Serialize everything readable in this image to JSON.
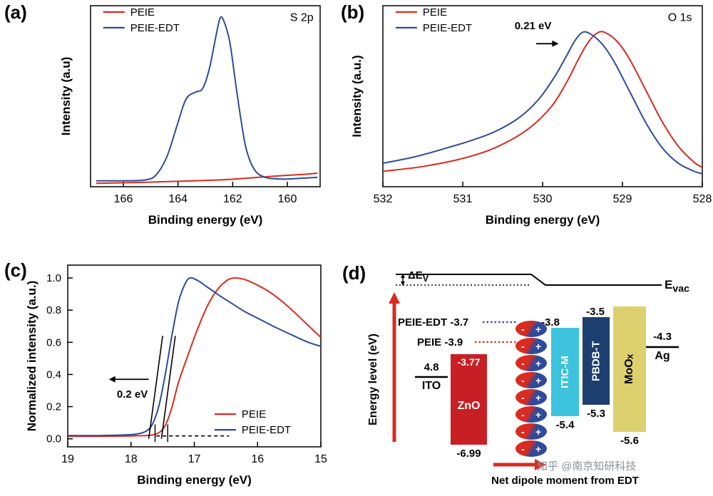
{
  "watermark": "知乎 @南京知研科技",
  "colors": {
    "red": "#d92b1f",
    "blue": "#2e4a9c",
    "zno_bar": "#c81f25",
    "itic_bar": "#3ec3de",
    "pbdb_bar": "#1d3f70",
    "moox_bar": "#ddd06e",
    "watermark": "#8a9097"
  },
  "chart_data": [
    {
      "id": "a",
      "type": "line",
      "panel_label": "(a)",
      "title": "S 2p XPS spectra",
      "xlabel": "Binding energy (eV)",
      "ylabel": "Intensity (a.u)",
      "xlim": [
        167.2,
        158.8
      ],
      "ylim": [
        0,
        1.07
      ],
      "xticks": [
        166,
        164,
        162,
        160
      ],
      "yticks": [],
      "legend": {
        "fx": 0.055,
        "fy": 0.035
      },
      "series": [
        {
          "name": "PEIE",
          "color": "red",
          "points": [
            [
              167,
              0.02
            ],
            [
              165.5,
              0.025
            ],
            [
              164,
              0.032
            ],
            [
              162.5,
              0.04
            ],
            [
              161.5,
              0.05
            ],
            [
              160.5,
              0.062
            ],
            [
              159.5,
              0.072
            ],
            [
              158.9,
              0.08
            ]
          ]
        },
        {
          "name": "PEIE-EDT",
          "color": "blue",
          "points": [
            [
              167,
              0.035
            ],
            [
              166,
              0.035
            ],
            [
              165.2,
              0.04
            ],
            [
              164.8,
              0.07
            ],
            [
              164.4,
              0.18
            ],
            [
              164.0,
              0.38
            ],
            [
              163.7,
              0.52
            ],
            [
              163.35,
              0.56
            ],
            [
              163.1,
              0.58
            ],
            [
              162.85,
              0.7
            ],
            [
              162.6,
              0.9
            ],
            [
              162.45,
              1.0
            ],
            [
              162.3,
              0.97
            ],
            [
              162.1,
              0.85
            ],
            [
              161.9,
              0.62
            ],
            [
              161.7,
              0.4
            ],
            [
              161.5,
              0.22
            ],
            [
              161.2,
              0.1
            ],
            [
              160.8,
              0.055
            ],
            [
              160.2,
              0.045
            ],
            [
              159.5,
              0.05
            ],
            [
              158.9,
              0.055
            ]
          ]
        }
      ],
      "annotations": [
        {
          "type": "text",
          "text": "S 2p",
          "frac": [
            0.92,
            0.085
          ],
          "size": 16,
          "weight": 400
        }
      ]
    },
    {
      "id": "b",
      "type": "line",
      "panel_label": "(b)",
      "title": "O 1s XPS spectra, 0.21 eV shift",
      "xlabel": "Binding energy (eV)",
      "ylabel": "Intensity (a.u.)",
      "xlim": [
        532,
        528
      ],
      "ylim": [
        0,
        1.12
      ],
      "xticks": [
        532,
        531,
        530,
        529,
        528
      ],
      "yticks": [],
      "legend": {
        "fx": 0.04,
        "fy": 0.035
      },
      "series": [
        {
          "name": "PEIE",
          "color": "red",
          "points": [
            [
              532,
              0.095
            ],
            [
              531.5,
              0.125
            ],
            [
              531.0,
              0.175
            ],
            [
              530.6,
              0.24
            ],
            [
              530.2,
              0.35
            ],
            [
              529.9,
              0.49
            ],
            [
              529.7,
              0.645
            ],
            [
              529.55,
              0.79
            ],
            [
              529.42,
              0.9
            ],
            [
              529.3,
              0.955
            ],
            [
              529.2,
              0.95
            ],
            [
              529.05,
              0.89
            ],
            [
              528.9,
              0.78
            ],
            [
              528.7,
              0.59
            ],
            [
              528.5,
              0.4
            ],
            [
              528.3,
              0.25
            ],
            [
              528.1,
              0.15
            ],
            [
              528.0,
              0.12
            ]
          ]
        },
        {
          "name": "PEIE-EDT",
          "color": "blue",
          "points": [
            [
              532,
              0.145
            ],
            [
              531.6,
              0.185
            ],
            [
              531.2,
              0.24
            ],
            [
              530.9,
              0.285
            ],
            [
              530.6,
              0.34
            ],
            [
              530.3,
              0.425
            ],
            [
              530.05,
              0.54
            ],
            [
              529.85,
              0.68
            ],
            [
              529.7,
              0.81
            ],
            [
              529.6,
              0.9
            ],
            [
              529.5,
              0.955
            ],
            [
              529.4,
              0.945
            ],
            [
              529.25,
              0.88
            ],
            [
              529.1,
              0.77
            ],
            [
              528.9,
              0.58
            ],
            [
              528.7,
              0.39
            ],
            [
              528.5,
              0.24
            ],
            [
              528.3,
              0.145
            ],
            [
              528.1,
              0.095
            ],
            [
              528.0,
              0.08
            ]
          ]
        }
      ],
      "annotations": [
        {
          "type": "text",
          "text": "O 1s",
          "frac": [
            0.93,
            0.085
          ],
          "size": 16,
          "weight": 400
        },
        {
          "type": "text",
          "text": "0.21 eV",
          "x": 530.12,
          "y": 0.975,
          "size": 15,
          "weight": 700
        },
        {
          "type": "arrow",
          "from": [
            530.08,
            0.885
          ],
          "to": [
            529.8,
            0.885
          ]
        }
      ]
    },
    {
      "id": "c",
      "type": "line",
      "panel_label": "(c)",
      "title": "UPS secondary electron cutoff, 0.2 eV shift",
      "xlabel": "Binding energy (eV)",
      "ylabel": "Normalized intensity (a.u.)",
      "xlim": [
        19,
        15
      ],
      "ylim": [
        -0.05,
        1.08
      ],
      "xticks": [
        19,
        18,
        17,
        16,
        15
      ],
      "yticks": [
        0,
        0.2,
        0.4,
        0.6,
        0.8,
        1.0
      ],
      "ytick_labels": [
        "0.0",
        "0.2",
        "0.4",
        "0.6",
        "0.8",
        "1.0"
      ],
      "legend": {
        "fx": 0.58,
        "fy": 0.82
      },
      "series": [
        {
          "name": "PEIE",
          "color": "red",
          "points": [
            [
              19,
              0.015
            ],
            [
              18.5,
              0.015
            ],
            [
              18.0,
              0.018
            ],
            [
              17.7,
              0.022
            ],
            [
              17.55,
              0.04
            ],
            [
              17.45,
              0.09
            ],
            [
              17.35,
              0.2
            ],
            [
              17.25,
              0.35
            ],
            [
              17.1,
              0.52
            ],
            [
              16.95,
              0.68
            ],
            [
              16.8,
              0.82
            ],
            [
              16.65,
              0.92
            ],
            [
              16.5,
              0.98
            ],
            [
              16.38,
              1.0
            ],
            [
              16.2,
              0.99
            ],
            [
              16.0,
              0.955
            ],
            [
              15.8,
              0.91
            ],
            [
              15.6,
              0.85
            ],
            [
              15.4,
              0.78
            ],
            [
              15.2,
              0.705
            ],
            [
              15.0,
              0.63
            ]
          ]
        },
        {
          "name": "PEIE-EDT",
          "color": "blue",
          "points": [
            [
              19,
              0.02
            ],
            [
              18.5,
              0.02
            ],
            [
              18.1,
              0.024
            ],
            [
              17.9,
              0.03
            ],
            [
              17.75,
              0.05
            ],
            [
              17.65,
              0.1
            ],
            [
              17.55,
              0.22
            ],
            [
              17.45,
              0.42
            ],
            [
              17.35,
              0.65
            ],
            [
              17.25,
              0.85
            ],
            [
              17.15,
              0.96
            ],
            [
              17.07,
              1.0
            ],
            [
              16.95,
              0.985
            ],
            [
              16.8,
              0.945
            ],
            [
              16.6,
              0.89
            ],
            [
              16.4,
              0.84
            ],
            [
              16.2,
              0.79
            ],
            [
              16.0,
              0.75
            ],
            [
              15.7,
              0.69
            ],
            [
              15.4,
              0.635
            ],
            [
              15.2,
              0.6
            ],
            [
              15.0,
              0.575
            ]
          ]
        }
      ],
      "annotations": [
        {
          "type": "line",
          "points": [
            [
              17.72,
              0.0
            ],
            [
              17.5,
              0.64
            ]
          ],
          "color": "black",
          "width": 1.6
        },
        {
          "type": "line",
          "points": [
            [
              17.52,
              0.0
            ],
            [
              17.3,
              0.64
            ]
          ],
          "color": "black",
          "width": 1.6
        },
        {
          "type": "line",
          "points": [
            [
              17.62,
              -0.02
            ],
            [
              17.62,
              0.09
            ]
          ],
          "color": "black",
          "width": 1.4
        },
        {
          "type": "line",
          "points": [
            [
              17.42,
              -0.02
            ],
            [
              17.42,
              0.09
            ]
          ],
          "color": "black",
          "width": 1.4
        },
        {
          "type": "line",
          "points": [
            [
              17.6,
              0.018
            ],
            [
              16.45,
              0.018
            ]
          ],
          "color": "black",
          "width": 1.6,
          "dash": "5,4"
        },
        {
          "type": "arrow",
          "from": [
            17.72,
            0.37
          ],
          "to": [
            18.35,
            0.37
          ]
        },
        {
          "type": "text",
          "text": "0.2 eV",
          "x": 17.98,
          "y": 0.255,
          "size": 15,
          "weight": 700
        }
      ]
    },
    {
      "id": "d",
      "type": "diagram",
      "panel_label": "(d)",
      "title": "Energy level diagram",
      "ylabel": "Energy level (eV)",
      "evac": {
        "main": "E",
        "sub": "vac"
      },
      "delta": {
        "main": "ΔE",
        "sub": "V"
      },
      "interlayers": {
        "peie_edt": {
          "label": "PEIE-EDT",
          "value": "-3.7"
        },
        "peie": {
          "label": "PEIE",
          "value": "-3.9"
        }
      },
      "levels": {
        "ito": {
          "label": "ITO",
          "value": "4.8"
        },
        "zno": {
          "label": "ZnO",
          "top": "-3.77",
          "bottom": "-6.99"
        },
        "itic": {
          "label": "ITIC-M",
          "top": "-3.8",
          "bottom": "-5.4"
        },
        "pbdb": {
          "label": "PBDB-T",
          "top": "-3.5",
          "bottom": "-5.3"
        },
        "moox": {
          "label_main": "MoO",
          "label_sub": "x",
          "bottom": "-5.6"
        },
        "ag": {
          "label": "Ag",
          "value": "-4.3"
        }
      },
      "dipole": {
        "count": 8,
        "minus": "-",
        "plus": "+"
      },
      "caption": "Net dipole moment from EDT"
    }
  ]
}
